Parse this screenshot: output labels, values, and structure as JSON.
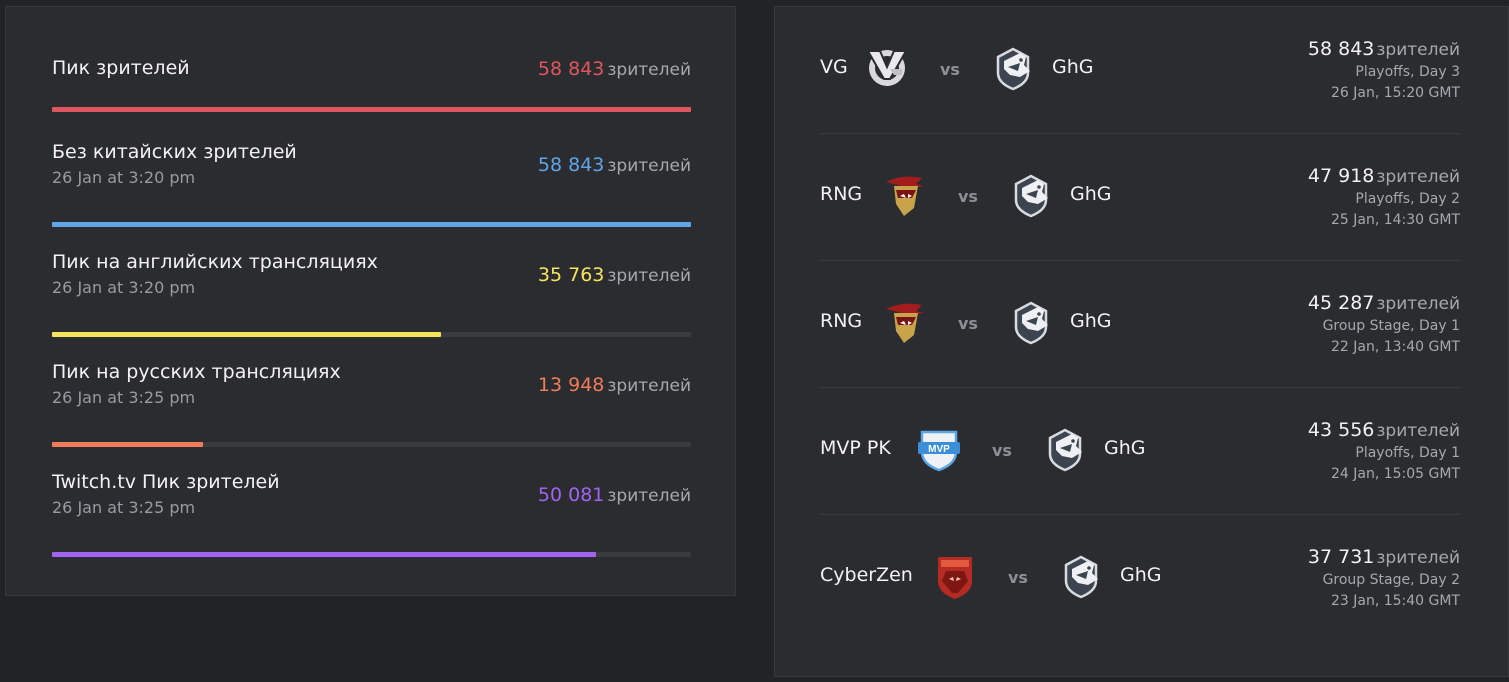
{
  "stats": [
    {
      "title": "Пик зрителей",
      "sub": "",
      "value": "58 843",
      "unit": "зрителей",
      "color": "#e0565f",
      "fill": 1.0
    },
    {
      "title": "Без китайских зрителей",
      "sub": "26 Jan at 3:20 pm",
      "value": "58 843",
      "unit": "зрителей",
      "color": "#5fa5e8",
      "fill": 1.0
    },
    {
      "title": "Пик на английских трансляциях",
      "sub": "26 Jan at 3:20 pm",
      "value": "35 763",
      "unit": "зрителей",
      "color": "#f6e35e",
      "fill": 0.608
    },
    {
      "title": "Пик на русских трансляциях",
      "sub": "26 Jan at 3:25 pm",
      "value": "13 948",
      "unit": "зрителей",
      "color": "#f07d58",
      "fill": 0.237
    },
    {
      "title": "Twitch.tv Пик зрителей",
      "sub": "26 Jan at 3:25 pm",
      "value": "50 081",
      "unit": "зрителей",
      "color": "#a263f2",
      "fill": 0.851
    }
  ],
  "matches": [
    {
      "team_a": "VG",
      "logo_a": "vg-logo-icon",
      "vs": "vs",
      "team_b": "GhG",
      "logo_b": "ghg-logo-icon",
      "viewers": "58 843",
      "unit": "зрителей",
      "stage": "Playoffs, Day 3",
      "date": "26 Jan, 15:20 GMT"
    },
    {
      "team_a": "RNG",
      "logo_a": "rng-logo-icon",
      "vs": "vs",
      "team_b": "GhG",
      "logo_b": "ghg-logo-icon",
      "viewers": "47 918",
      "unit": "зрителей",
      "stage": "Playoffs, Day 2",
      "date": "25 Jan, 14:30 GMT"
    },
    {
      "team_a": "RNG",
      "logo_a": "rng-logo-icon",
      "vs": "vs",
      "team_b": "GhG",
      "logo_b": "ghg-logo-icon",
      "viewers": "45 287",
      "unit": "зрителей",
      "stage": "Group Stage, Day 1",
      "date": "22 Jan, 13:40 GMT"
    },
    {
      "team_a": "MVP PK",
      "logo_a": "mvp-logo-icon",
      "vs": "vs",
      "team_b": "GhG",
      "logo_b": "ghg-logo-icon",
      "viewers": "43 556",
      "unit": "зрителей",
      "stage": "Playoffs, Day 1",
      "date": "24 Jan, 15:05 GMT"
    },
    {
      "team_a": "CyberZen",
      "logo_a": "cyberzen-logo-icon",
      "vs": "vs",
      "team_b": "GhG",
      "logo_b": "ghg-logo-icon",
      "viewers": "37 731",
      "unit": "зрителей",
      "stage": "Group Stage, Day 2",
      "date": "23 Jan, 15:40 GMT"
    }
  ]
}
